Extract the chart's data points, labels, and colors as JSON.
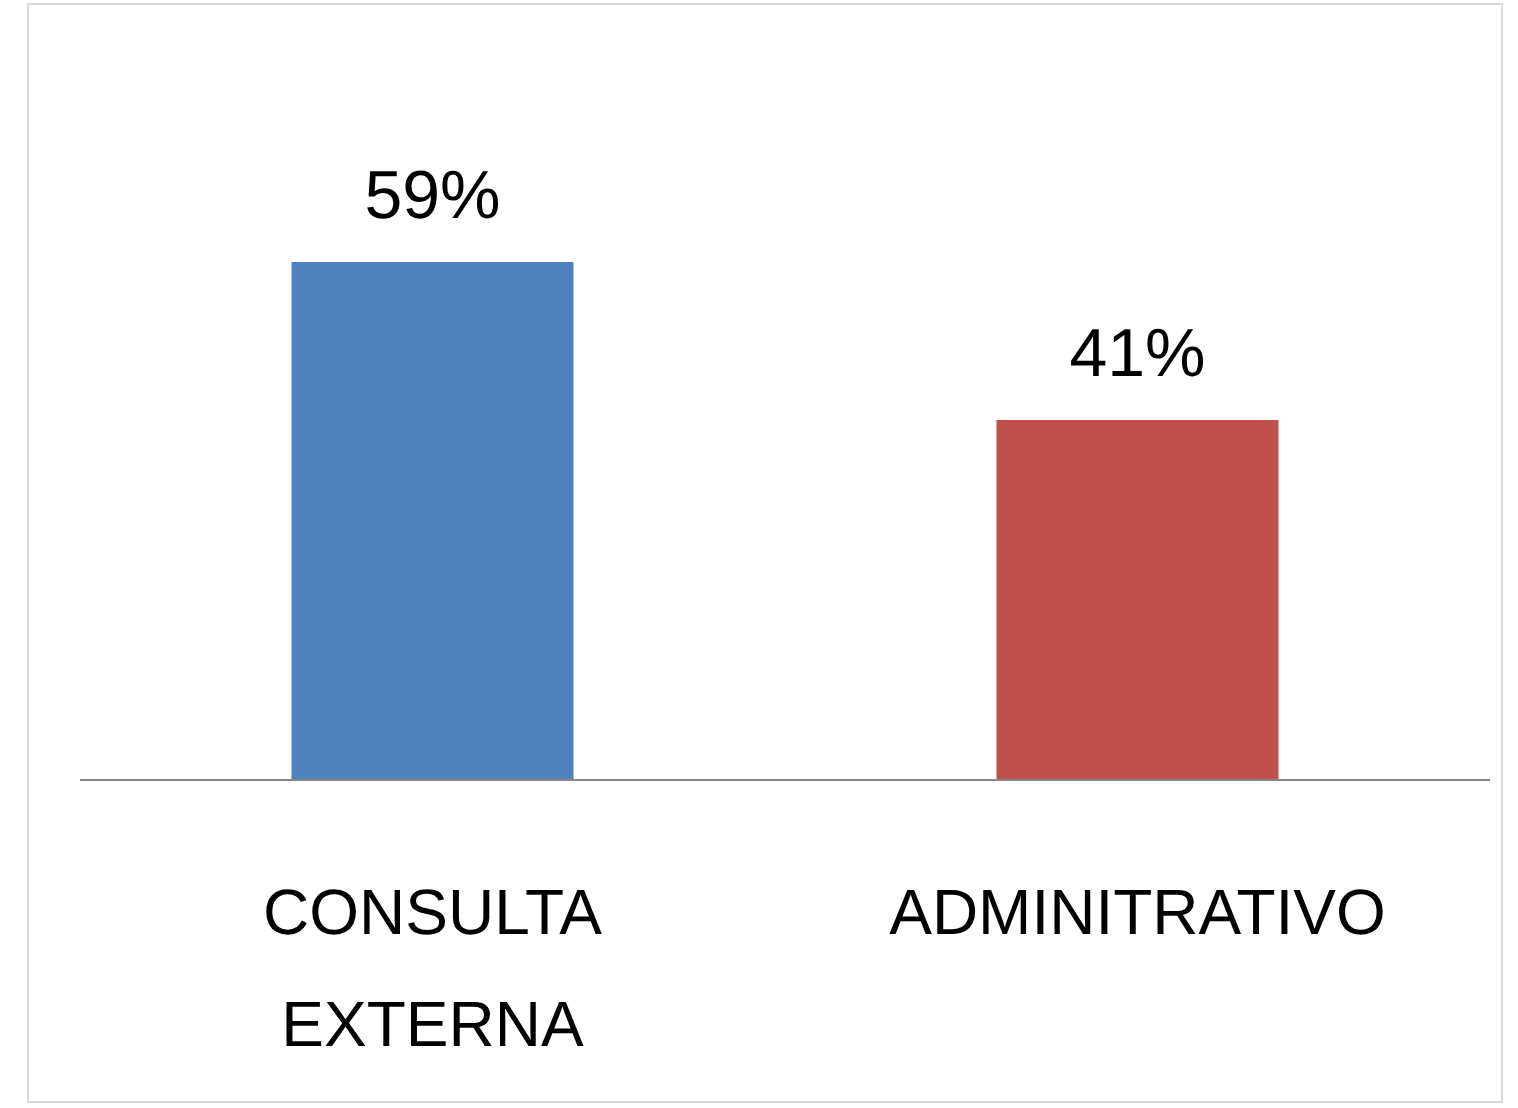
{
  "chart_data": {
    "type": "bar",
    "categories": [
      "CONSULTA EXTERNA",
      "ADMINITRATIVO"
    ],
    "values": [
      59,
      41
    ],
    "colors": [
      "#4f81bd",
      "#c0504d"
    ],
    "value_labels": [
      "59%",
      "41%"
    ]
  }
}
